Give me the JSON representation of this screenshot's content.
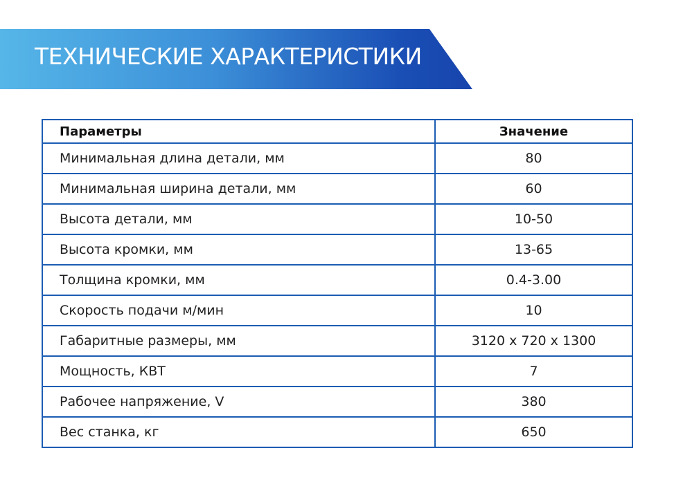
{
  "title": "ТЕХНИЧЕСКИЕ ХАРАКТЕРИСТИКИ",
  "colors": {
    "banner_start": "#56b6e8",
    "banner_end": "#1744ad",
    "table_border": "#1b5cb3"
  },
  "table": {
    "headers": [
      "Параметры",
      "Значение"
    ],
    "rows": [
      [
        "Минимальная длина детали, мм",
        "80"
      ],
      [
        "Минимальная ширина детали, мм",
        "60"
      ],
      [
        "Высота детали, мм",
        "10-50"
      ],
      [
        "Высота кромки, мм",
        "13-65"
      ],
      [
        "Толщина кромки, мм",
        "0.4-3.00"
      ],
      [
        "Скорость подачи м/мин",
        "10"
      ],
      [
        "Габаритные размеры, мм",
        "3120 х 720 х 1300"
      ],
      [
        "Мощность, КВТ",
        "7"
      ],
      [
        "Рабочее напряжение, V",
        "380"
      ],
      [
        "Вес станка, кг",
        "650"
      ]
    ]
  }
}
